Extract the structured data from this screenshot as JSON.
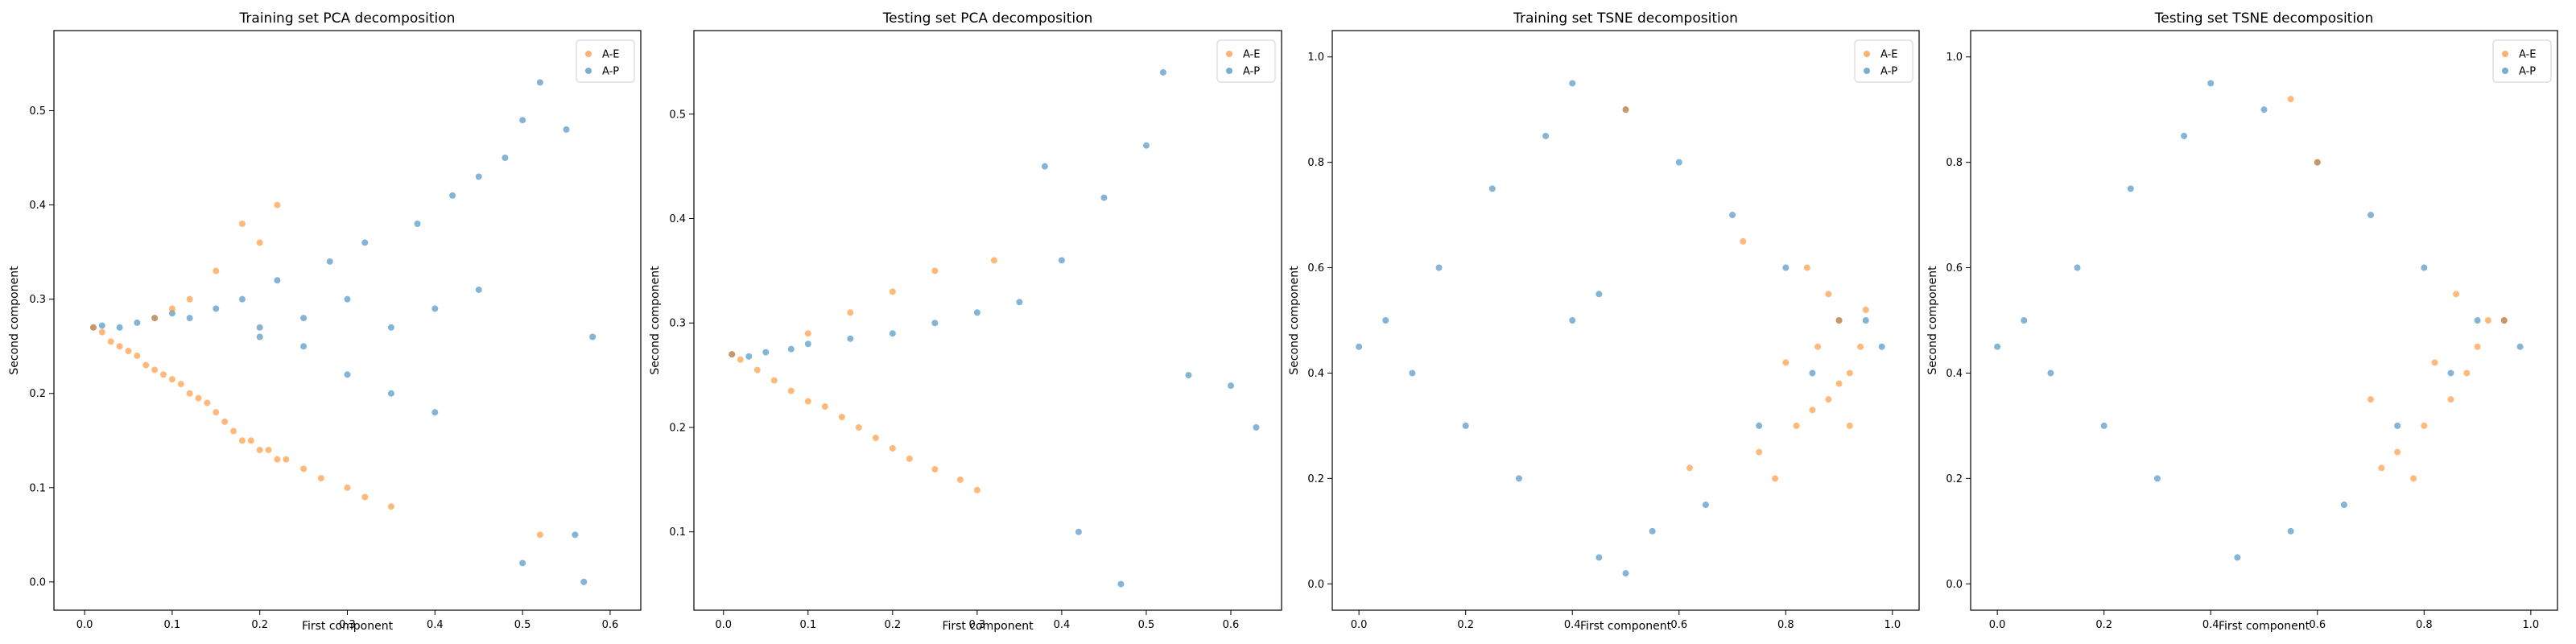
{
  "colors": {
    "ae": "#ff7f0e",
    "ap": "#1f77b4"
  },
  "chart_data": [
    {
      "type": "scatter",
      "title": "Training set PCA decomposition",
      "xlabel": "First component",
      "ylabel": "Second component",
      "xlim": [
        -0.035,
        0.635
      ],
      "ylim": [
        -0.03,
        0.585
      ],
      "xticks": [
        0.0,
        0.1,
        0.2,
        0.3,
        0.4,
        0.5,
        0.6
      ],
      "yticks": [
        0.0,
        0.1,
        0.2,
        0.3,
        0.4,
        0.5
      ],
      "grid": false,
      "legend": "top-right",
      "series": [
        {
          "name": "A-E",
          "color": "#ff7f0e",
          "x": [
            0.01,
            0.02,
            0.03,
            0.04,
            0.05,
            0.06,
            0.07,
            0.08,
            0.09,
            0.1,
            0.11,
            0.12,
            0.13,
            0.14,
            0.15,
            0.16,
            0.17,
            0.18,
            0.19,
            0.2,
            0.21,
            0.22,
            0.23,
            0.25,
            0.27,
            0.3,
            0.32,
            0.35,
            0.52,
            0.2,
            0.15,
            0.12,
            0.1,
            0.08,
            0.18,
            0.22
          ],
          "y": [
            0.27,
            0.265,
            0.255,
            0.25,
            0.245,
            0.24,
            0.23,
            0.225,
            0.22,
            0.215,
            0.21,
            0.2,
            0.195,
            0.19,
            0.18,
            0.17,
            0.16,
            0.15,
            0.15,
            0.14,
            0.14,
            0.13,
            0.13,
            0.12,
            0.11,
            0.1,
            0.09,
            0.08,
            0.05,
            0.36,
            0.33,
            0.3,
            0.29,
            0.28,
            0.38,
            0.4
          ]
        },
        {
          "name": "A-P",
          "color": "#1f77b4",
          "x": [
            0.01,
            0.02,
            0.04,
            0.06,
            0.08,
            0.1,
            0.12,
            0.15,
            0.18,
            0.2,
            0.22,
            0.25,
            0.28,
            0.3,
            0.32,
            0.35,
            0.38,
            0.4,
            0.42,
            0.45,
            0.48,
            0.5,
            0.52,
            0.55,
            0.58,
            0.2,
            0.25,
            0.3,
            0.35,
            0.4,
            0.45,
            0.5,
            0.56,
            0.57
          ],
          "y": [
            0.27,
            0.272,
            0.27,
            0.275,
            0.28,
            0.285,
            0.28,
            0.29,
            0.3,
            0.26,
            0.32,
            0.25,
            0.34,
            0.22,
            0.36,
            0.2,
            0.38,
            0.18,
            0.41,
            0.43,
            0.45,
            0.49,
            0.53,
            0.48,
            0.26,
            0.27,
            0.28,
            0.3,
            0.27,
            0.29,
            0.31,
            0.02,
            0.05,
            0.0
          ]
        }
      ]
    },
    {
      "type": "scatter",
      "title": "Testing set PCA decomposition",
      "xlabel": "First component",
      "ylabel": "Second component",
      "xlim": [
        -0.035,
        0.66
      ],
      "ylim": [
        0.025,
        0.58
      ],
      "xticks": [
        0.0,
        0.1,
        0.2,
        0.3,
        0.4,
        0.5,
        0.6
      ],
      "yticks": [
        0.1,
        0.2,
        0.3,
        0.4,
        0.5
      ],
      "grid": false,
      "legend": "top-right",
      "series": [
        {
          "name": "A-E",
          "color": "#ff7f0e",
          "x": [
            0.01,
            0.02,
            0.04,
            0.06,
            0.08,
            0.1,
            0.12,
            0.14,
            0.16,
            0.18,
            0.2,
            0.22,
            0.25,
            0.28,
            0.3,
            0.1,
            0.15,
            0.2,
            0.25,
            0.32
          ],
          "y": [
            0.27,
            0.265,
            0.255,
            0.245,
            0.235,
            0.225,
            0.22,
            0.21,
            0.2,
            0.19,
            0.18,
            0.17,
            0.16,
            0.15,
            0.14,
            0.29,
            0.31,
            0.33,
            0.35,
            0.36
          ]
        },
        {
          "name": "A-P",
          "color": "#1f77b4",
          "x": [
            0.01,
            0.03,
            0.05,
            0.08,
            0.1,
            0.15,
            0.2,
            0.25,
            0.3,
            0.35,
            0.4,
            0.45,
            0.5,
            0.55,
            0.6,
            0.63,
            0.52,
            0.47,
            0.42,
            0.38
          ],
          "y": [
            0.27,
            0.268,
            0.272,
            0.275,
            0.28,
            0.285,
            0.29,
            0.3,
            0.31,
            0.32,
            0.36,
            0.42,
            0.47,
            0.25,
            0.24,
            0.2,
            0.54,
            0.05,
            0.1,
            0.45
          ]
        }
      ]
    },
    {
      "type": "scatter",
      "title": "Training set TSNE decomposition",
      "xlabel": "First component",
      "ylabel": "Second component",
      "xlim": [
        -0.05,
        1.05
      ],
      "ylim": [
        -0.05,
        1.05
      ],
      "xticks": [
        0.0,
        0.2,
        0.4,
        0.6,
        0.8,
        1.0
      ],
      "yticks": [
        0.0,
        0.2,
        0.4,
        0.6,
        0.8,
        1.0
      ],
      "grid": false,
      "legend": "top-right",
      "series": [
        {
          "name": "A-E",
          "color": "#ff7f0e",
          "x": [
            0.82,
            0.85,
            0.88,
            0.9,
            0.92,
            0.94,
            0.86,
            0.8,
            0.78,
            0.9,
            0.95,
            0.88,
            0.84,
            0.92,
            0.72,
            0.75,
            0.62,
            0.5
          ],
          "y": [
            0.3,
            0.33,
            0.35,
            0.38,
            0.4,
            0.45,
            0.45,
            0.42,
            0.2,
            0.5,
            0.52,
            0.55,
            0.6,
            0.3,
            0.65,
            0.25,
            0.22,
            0.9
          ]
        },
        {
          "name": "A-P",
          "color": "#1f77b4",
          "x": [
            0.0,
            0.05,
            0.1,
            0.15,
            0.2,
            0.25,
            0.3,
            0.35,
            0.4,
            0.45,
            0.5,
            0.55,
            0.6,
            0.65,
            0.7,
            0.75,
            0.8,
            0.85,
            0.9,
            0.95,
            0.98,
            0.4,
            0.45,
            0.5
          ],
          "y": [
            0.45,
            0.5,
            0.4,
            0.6,
            0.3,
            0.75,
            0.2,
            0.85,
            0.95,
            0.05,
            0.9,
            0.1,
            0.8,
            0.15,
            0.7,
            0.3,
            0.6,
            0.4,
            0.5,
            0.5,
            0.45,
            0.5,
            0.55,
            0.02
          ]
        }
      ]
    },
    {
      "type": "scatter",
      "title": "Testing set TSNE decomposition",
      "xlabel": "First component",
      "ylabel": "Second component",
      "xlim": [
        -0.05,
        1.05
      ],
      "ylim": [
        -0.05,
        1.05
      ],
      "xticks": [
        0.0,
        0.2,
        0.4,
        0.6,
        0.8,
        1.0
      ],
      "yticks": [
        0.0,
        0.2,
        0.4,
        0.6,
        0.8,
        1.0
      ],
      "grid": false,
      "legend": "top-right",
      "series": [
        {
          "name": "A-E",
          "color": "#ff7f0e",
          "x": [
            0.75,
            0.8,
            0.85,
            0.88,
            0.9,
            0.92,
            0.78,
            0.82,
            0.86,
            0.95,
            0.7,
            0.72,
            0.6,
            0.55
          ],
          "y": [
            0.25,
            0.3,
            0.35,
            0.4,
            0.45,
            0.5,
            0.2,
            0.42,
            0.55,
            0.5,
            0.35,
            0.22,
            0.8,
            0.92
          ]
        },
        {
          "name": "A-P",
          "color": "#1f77b4",
          "x": [
            0.0,
            0.05,
            0.1,
            0.15,
            0.2,
            0.25,
            0.3,
            0.35,
            0.4,
            0.45,
            0.5,
            0.55,
            0.6,
            0.65,
            0.7,
            0.75,
            0.8,
            0.85,
            0.9,
            0.95,
            0.98
          ],
          "y": [
            0.45,
            0.5,
            0.4,
            0.6,
            0.3,
            0.75,
            0.2,
            0.85,
            0.95,
            0.05,
            0.9,
            0.1,
            0.8,
            0.15,
            0.7,
            0.3,
            0.6,
            0.4,
            0.5,
            0.5,
            0.45
          ]
        }
      ]
    }
  ]
}
